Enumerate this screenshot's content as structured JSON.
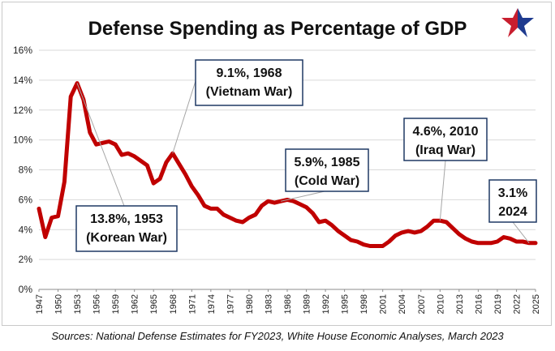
{
  "header": {
    "title": "Defense Spending as Percentage of GDP"
  },
  "footer": {
    "source": "Sources: National Defense Estimates for FY2023, White House Economic Analyses, March 2023"
  },
  "logo": {
    "icon": "star-logo-icon",
    "colors": {
      "left": "#c81e2f",
      "right": "#1f3b8f"
    }
  },
  "colors": {
    "series": "#c00000",
    "grid": "#d9d9d9",
    "callout_border": "#1f3864",
    "leader": "#a6a6a6"
  },
  "chart_data": {
    "type": "line",
    "title": "Defense Spending as Percentage of GDP",
    "xlabel": "",
    "ylabel": "",
    "ylim": [
      0,
      16
    ],
    "xlim": [
      1947,
      2025
    ],
    "y_ticks": [
      "0%",
      "2%",
      "4%",
      "6%",
      "8%",
      "10%",
      "12%",
      "14%",
      "16%"
    ],
    "x_tick_labels": [
      "1947",
      "1950",
      "1953",
      "1956",
      "1959",
      "1962",
      "1965",
      "1968",
      "1971",
      "1974",
      "1977",
      "1980",
      "1983",
      "1986",
      "1989",
      "1992",
      "1995",
      "1998",
      "2001",
      "2004",
      "2007",
      "2010",
      "2013",
      "2016",
      "2019",
      "2022",
      "2025"
    ],
    "grid": true,
    "series": [
      {
        "x": [
          1947,
          1948,
          1949,
          1950,
          1951,
          1952,
          1953,
          1954,
          1955,
          1956,
          1957,
          1958,
          1959,
          1960,
          1961,
          1962,
          1963,
          1964,
          1965,
          1966,
          1967,
          1968,
          1969,
          1970,
          1971,
          1972,
          1973,
          1974,
          1975,
          1976,
          1977,
          1978,
          1979,
          1980,
          1981,
          1982,
          1983,
          1984,
          1985,
          1986,
          1987,
          1988,
          1989,
          1990,
          1991,
          1992,
          1993,
          1994,
          1995,
          1996,
          1997,
          1998,
          1999,
          2000,
          2001,
          2002,
          2003,
          2004,
          2005,
          2006,
          2007,
          2008,
          2009,
          2010,
          2011,
          2012,
          2013,
          2014,
          2015,
          2016,
          2017,
          2018,
          2019,
          2020,
          2021,
          2022,
          2023,
          2024,
          2025
        ],
        "values": [
          5.4,
          3.5,
          4.8,
          4.9,
          7.2,
          12.9,
          13.8,
          12.7,
          10.5,
          9.7,
          9.8,
          9.9,
          9.7,
          9.0,
          9.1,
          8.9,
          8.6,
          8.3,
          7.1,
          7.4,
          8.5,
          9.1,
          8.4,
          7.7,
          6.9,
          6.3,
          5.6,
          5.4,
          5.4,
          5.0,
          4.8,
          4.6,
          4.5,
          4.8,
          5.0,
          5.6,
          5.9,
          5.8,
          5.9,
          6.0,
          5.9,
          5.7,
          5.5,
          5.1,
          4.5,
          4.6,
          4.3,
          3.9,
          3.6,
          3.3,
          3.2,
          3.0,
          2.9,
          2.9,
          2.9,
          3.2,
          3.6,
          3.8,
          3.9,
          3.8,
          3.9,
          4.2,
          4.6,
          4.6,
          4.5,
          4.1,
          3.7,
          3.4,
          3.2,
          3.1,
          3.1,
          3.1,
          3.2,
          3.5,
          3.4,
          3.2,
          3.2,
          3.1,
          3.1
        ]
      }
    ],
    "annotations": [
      {
        "line1": "13.8%, 1953",
        "line2": "(Korean War)",
        "x": 1953,
        "y": 13.8
      },
      {
        "line1": "9.1%, 1968",
        "line2": "(Vietnam War)",
        "x": 1968,
        "y": 9.1
      },
      {
        "line1": "5.9%, 1985",
        "line2": "(Cold War)",
        "x": 1985,
        "y": 5.9
      },
      {
        "line1": "4.6%, 2010",
        "line2": "(Iraq War)",
        "x": 2010,
        "y": 4.6
      },
      {
        "line1": "3.1%",
        "line2": "2024",
        "x": 2024,
        "y": 3.1
      }
    ]
  }
}
